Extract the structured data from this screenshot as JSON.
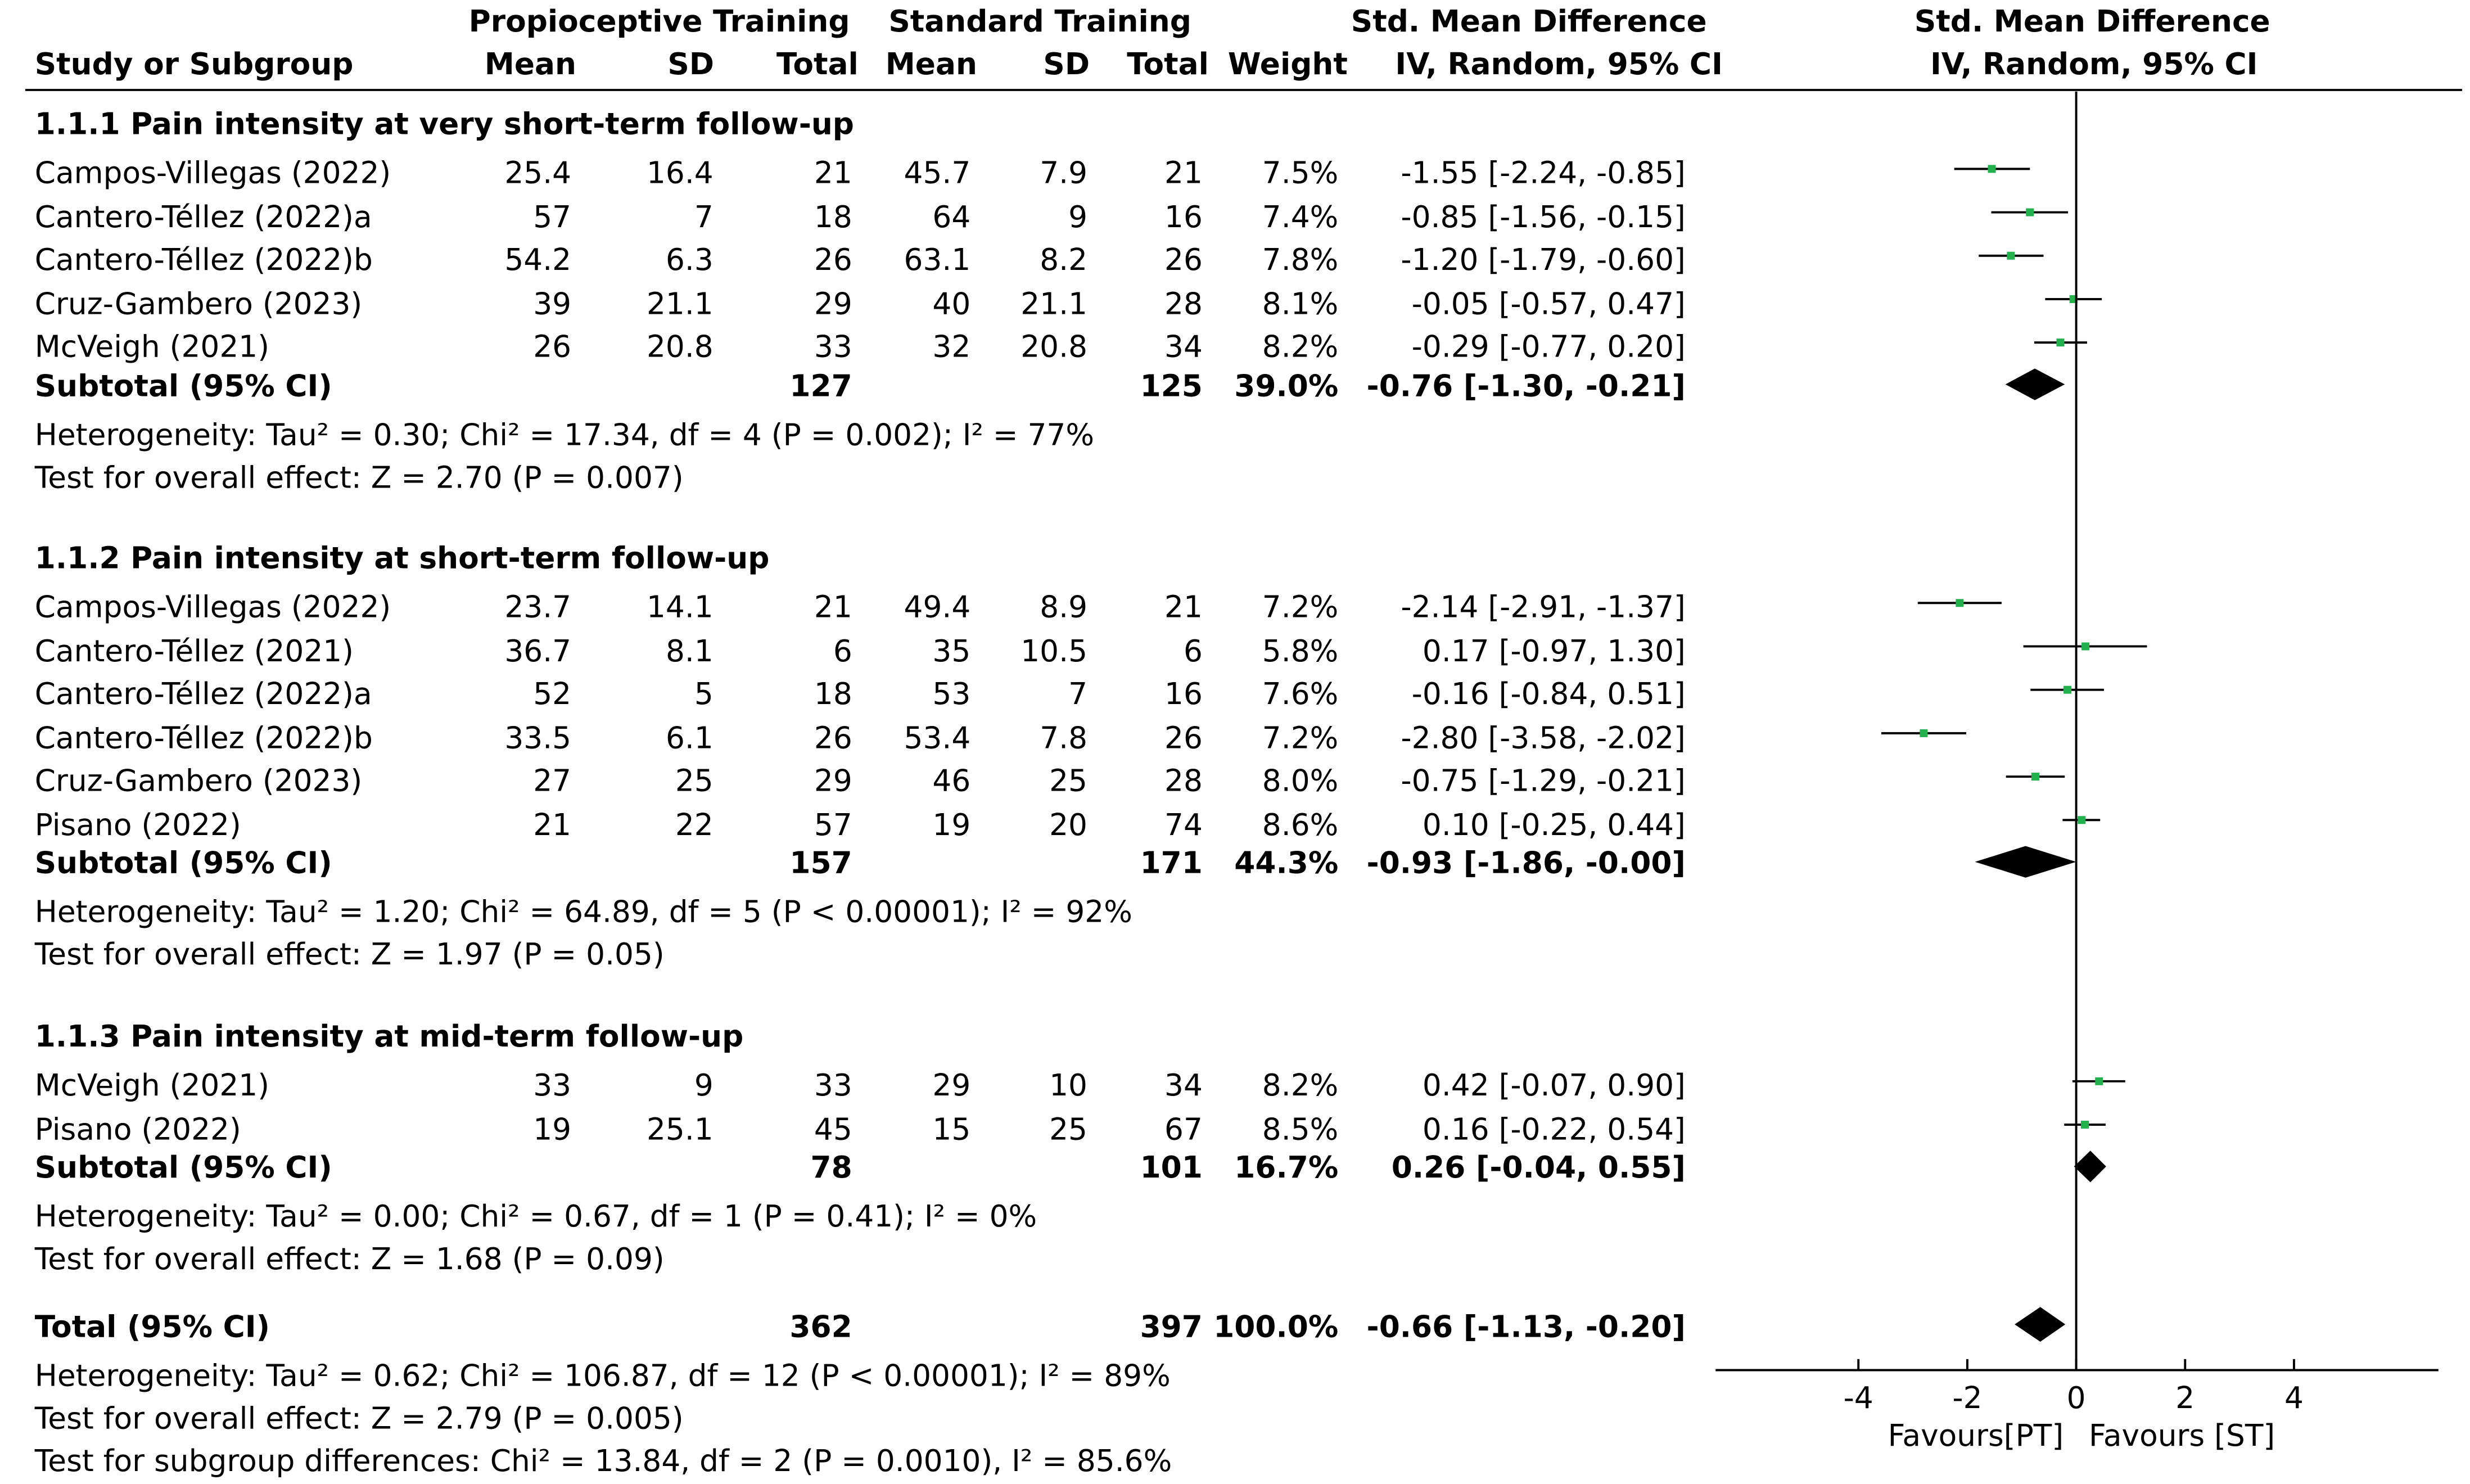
{
  "header": {
    "group1": "Propioceptive Training",
    "group2": "Standard Training",
    "smd_title": "Std. Mean Difference",
    "study_col": "Study or Subgroup",
    "mean1": "Mean",
    "sd1": "SD",
    "total1": "Total",
    "mean2": "Mean",
    "sd2": "SD",
    "total2": "Total",
    "weight": "Weight",
    "method": "IV, Random, 95% CI",
    "plot_title": "Std. Mean Difference",
    "plot_method": "IV, Random, 95% CI"
  },
  "subgroups": [
    {
      "title": "1.1.1 Pain intensity at very short-term follow-up",
      "studies": [
        {
          "name": "Campos-Villegas (2022)",
          "m1": "25.4",
          "sd1": "16.4",
          "n1": "21",
          "m2": "45.7",
          "sd2": "7.9",
          "n2": "21",
          "weight": "7.5%",
          "ci": "-1.55 [-2.24, -0.85]"
        },
        {
          "name": "Cantero-Téllez (2022)a",
          "m1": "57",
          "sd1": "7",
          "n1": "18",
          "m2": "64",
          "sd2": "9",
          "n2": "16",
          "weight": "7.4%",
          "ci": "-0.85 [-1.56, -0.15]"
        },
        {
          "name": "Cantero-Téllez (2022)b",
          "m1": "54.2",
          "sd1": "6.3",
          "n1": "26",
          "m2": "63.1",
          "sd2": "8.2",
          "n2": "26",
          "weight": "7.8%",
          "ci": "-1.20 [-1.79, -0.60]"
        },
        {
          "name": "Cruz-Gambero (2023)",
          "m1": "39",
          "sd1": "21.1",
          "n1": "29",
          "m2": "40",
          "sd2": "21.1",
          "n2": "28",
          "weight": "8.1%",
          "ci": "-0.05 [-0.57, 0.47]"
        },
        {
          "name": "McVeigh (2021)",
          "m1": "26",
          "sd1": "20.8",
          "n1": "33",
          "m2": "32",
          "sd2": "20.8",
          "n2": "34",
          "weight": "8.2%",
          "ci": "-0.29 [-0.77, 0.20]"
        }
      ],
      "subtotal": {
        "label": "Subtotal (95% CI)",
        "n1": "127",
        "n2": "125",
        "weight": "39.0%",
        "ci": "-0.76 [-1.30, -0.21]"
      },
      "heterogeneity": "Heterogeneity: Tau² = 0.30; Chi² = 17.34, df = 4 (P = 0.002); I² = 77%",
      "overall": "Test for overall effect: Z = 2.70 (P = 0.007)"
    },
    {
      "title": "1.1.2 Pain intensity at short-term follow-up",
      "studies": [
        {
          "name": "Campos-Villegas (2022)",
          "m1": "23.7",
          "sd1": "14.1",
          "n1": "21",
          "m2": "49.4",
          "sd2": "8.9",
          "n2": "21",
          "weight": "7.2%",
          "ci": "-2.14 [-2.91, -1.37]"
        },
        {
          "name": "Cantero-Téllez (2021)",
          "m1": "36.7",
          "sd1": "8.1",
          "n1": "6",
          "m2": "35",
          "sd2": "10.5",
          "n2": "6",
          "weight": "5.8%",
          "ci": "0.17 [-0.97, 1.30]"
        },
        {
          "name": "Cantero-Téllez (2022)a",
          "m1": "52",
          "sd1": "5",
          "n1": "18",
          "m2": "53",
          "sd2": "7",
          "n2": "16",
          "weight": "7.6%",
          "ci": "-0.16 [-0.84, 0.51]"
        },
        {
          "name": "Cantero-Téllez (2022)b",
          "m1": "33.5",
          "sd1": "6.1",
          "n1": "26",
          "m2": "53.4",
          "sd2": "7.8",
          "n2": "26",
          "weight": "7.2%",
          "ci": "-2.80 [-3.58, -2.02]"
        },
        {
          "name": "Cruz-Gambero (2023)",
          "m1": "27",
          "sd1": "25",
          "n1": "29",
          "m2": "46",
          "sd2": "25",
          "n2": "28",
          "weight": "8.0%",
          "ci": "-0.75 [-1.29, -0.21]"
        },
        {
          "name": "Pisano (2022)",
          "m1": "21",
          "sd1": "22",
          "n1": "57",
          "m2": "19",
          "sd2": "20",
          "n2": "74",
          "weight": "8.6%",
          "ci": "0.10 [-0.25, 0.44]"
        }
      ],
      "subtotal": {
        "label": "Subtotal (95% CI)",
        "n1": "157",
        "n2": "171",
        "weight": "44.3%",
        "ci": "-0.93 [-1.86, -0.00]"
      },
      "heterogeneity": "Heterogeneity: Tau² = 1.20; Chi² = 64.89, df = 5 (P < 0.00001); I² = 92%",
      "overall": "Test for overall effect: Z = 1.97 (P = 0.05)"
    },
    {
      "title": "1.1.3 Pain intensity at mid-term follow-up",
      "studies": [
        {
          "name": "McVeigh (2021)",
          "m1": "33",
          "sd1": "9",
          "n1": "33",
          "m2": "29",
          "sd2": "10",
          "n2": "34",
          "weight": "8.2%",
          "ci": "0.42 [-0.07, 0.90]"
        },
        {
          "name": "Pisano (2022)",
          "m1": "19",
          "sd1": "25.1",
          "n1": "45",
          "m2": "15",
          "sd2": "25",
          "n2": "67",
          "weight": "8.5%",
          "ci": "0.16 [-0.22, 0.54]"
        }
      ],
      "subtotal": {
        "label": "Subtotal (95% CI)",
        "n1": "78",
        "n2": "101",
        "weight": "16.7%",
        "ci": "0.26 [-0.04, 0.55]"
      },
      "heterogeneity": "Heterogeneity: Tau² = 0.00; Chi² = 0.67, df = 1 (P = 0.41); I² = 0%",
      "overall": "Test for overall effect: Z = 1.68 (P = 0.09)"
    }
  ],
  "total": {
    "label": "Total (95% CI)",
    "n1": "362",
    "n2": "397",
    "weight": "100.0%",
    "ci": "-0.66 [-1.13, -0.20]",
    "heterogeneity": "Heterogeneity: Tau² = 0.62; Chi² = 106.87, df = 12 (P < 0.00001); I² = 89%",
    "overall": "Test for overall effect: Z = 2.79 (P = 0.005)",
    "subgroup_diff": "Test for subgroup differences: Chi² = 13.84, df = 2 (P = 0.0010), I² = 85.6%"
  },
  "colors": {
    "point": "#22b14c",
    "line": "#000000",
    "diamond": "#000000"
  },
  "chart_data": {
    "type": "forest",
    "title": "Std. Mean Difference",
    "subtitle": "IV, Random, 95% CI",
    "xlim": [
      -6.6,
      6.6
    ],
    "xticks": [
      -4,
      -2,
      0,
      2,
      4
    ],
    "xlabel_left": "Favours[PT]",
    "xlabel_right": "Favours [ST]",
    "series": [
      {
        "name": "1.1.1 Pain intensity at very short-term follow-up",
        "estimates": [
          -1.55,
          -0.85,
          -1.2,
          -0.05,
          -0.29
        ],
        "lower": [
          -2.24,
          -1.56,
          -1.79,
          -0.57,
          -0.77
        ],
        "upper": [
          -0.85,
          -0.15,
          -0.6,
          0.47,
          0.2
        ],
        "subtotal": {
          "est": -0.76,
          "lower": -1.3,
          "upper": -0.21
        }
      },
      {
        "name": "1.1.2 Pain intensity at short-term follow-up",
        "estimates": [
          -2.14,
          0.17,
          -0.16,
          -2.8,
          -0.75,
          0.1
        ],
        "lower": [
          -2.91,
          -0.97,
          -0.84,
          -3.58,
          -1.29,
          -0.25
        ],
        "upper": [
          -1.37,
          1.3,
          0.51,
          -2.02,
          -0.21,
          0.44
        ],
        "subtotal": {
          "est": -0.93,
          "lower": -1.86,
          "upper": -0.0
        }
      },
      {
        "name": "1.1.3 Pain intensity at mid-term follow-up",
        "estimates": [
          0.42,
          0.16
        ],
        "lower": [
          -0.07,
          -0.22
        ],
        "upper": [
          0.9,
          0.54
        ],
        "subtotal": {
          "est": 0.26,
          "lower": -0.04,
          "upper": 0.55
        }
      }
    ],
    "overall": {
      "est": -0.66,
      "lower": -1.13,
      "upper": -0.2
    }
  }
}
